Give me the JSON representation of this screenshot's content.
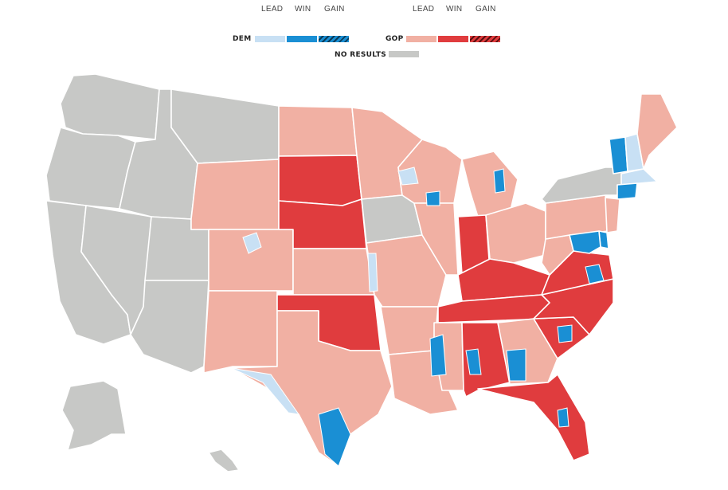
{
  "legend": {
    "dem": {
      "party_label": "DEM",
      "lead_label": "LEAD",
      "win_label": "WIN",
      "gain_label": "GAIN",
      "lead_color": "#c8e0f4",
      "win_color": "#1a8fd4",
      "gain_color": "#0d6fa8"
    },
    "gop": {
      "party_label": "GOP",
      "lead_label": "LEAD",
      "win_label": "WIN",
      "gain_label": "GAIN",
      "lead_color": "#f1b0a3",
      "win_color": "#e03c3e",
      "gain_color": "#b32326"
    },
    "no_results_label": "NO RESULTS",
    "no_results_color": "#c7c8c6"
  },
  "map": {
    "states": [
      {
        "code": "WA",
        "status": "no_results"
      },
      {
        "code": "OR",
        "status": "no_results"
      },
      {
        "code": "CA",
        "status": "no_results"
      },
      {
        "code": "NV",
        "status": "no_results"
      },
      {
        "code": "ID",
        "status": "no_results"
      },
      {
        "code": "MT",
        "status": "no_results"
      },
      {
        "code": "UT",
        "status": "no_results"
      },
      {
        "code": "AZ",
        "status": "no_results"
      },
      {
        "code": "WY",
        "status": "gop_lead"
      },
      {
        "code": "CO",
        "status": "gop_lead"
      },
      {
        "code": "NM",
        "status": "gop_lead"
      },
      {
        "code": "ND",
        "status": "gop_lead"
      },
      {
        "code": "SD",
        "status": "gop_win"
      },
      {
        "code": "NE",
        "status": "gop_win"
      },
      {
        "code": "KS",
        "status": "gop_lead"
      },
      {
        "code": "OK",
        "status": "gop_win"
      },
      {
        "code": "TX",
        "status": "gop_lead"
      },
      {
        "code": "MN",
        "status": "gop_lead"
      },
      {
        "code": "IA",
        "status": "no_results"
      },
      {
        "code": "MO",
        "status": "gop_lead"
      },
      {
        "code": "AR",
        "status": "gop_lead"
      },
      {
        "code": "LA",
        "status": "gop_lead"
      },
      {
        "code": "WI",
        "status": "gop_lead"
      },
      {
        "code": "IL",
        "status": "gop_lead"
      },
      {
        "code": "MI",
        "status": "gop_lead"
      },
      {
        "code": "IN",
        "status": "gop_win"
      },
      {
        "code": "OH",
        "status": "gop_lead"
      },
      {
        "code": "KY",
        "status": "gop_win"
      },
      {
        "code": "TN",
        "status": "gop_win"
      },
      {
        "code": "MS",
        "status": "gop_lead"
      },
      {
        "code": "AL",
        "status": "gop_win"
      },
      {
        "code": "GA",
        "status": "gop_lead"
      },
      {
        "code": "FL",
        "status": "gop_win"
      },
      {
        "code": "SC",
        "status": "gop_win"
      },
      {
        "code": "NC",
        "status": "gop_win"
      },
      {
        "code": "VA",
        "status": "gop_win"
      },
      {
        "code": "WV",
        "status": "gop_lead"
      },
      {
        "code": "PA",
        "status": "gop_lead"
      },
      {
        "code": "NY",
        "status": "no_results"
      },
      {
        "code": "VT",
        "status": "dem_win"
      },
      {
        "code": "NH",
        "status": "dem_lead"
      },
      {
        "code": "ME",
        "status": "gop_lead"
      },
      {
        "code": "MA",
        "status": "dem_lead"
      },
      {
        "code": "CT",
        "status": "dem_win"
      },
      {
        "code": "NJ",
        "status": "gop_lead"
      },
      {
        "code": "DE",
        "status": "dem_win"
      },
      {
        "code": "MD",
        "status": "dem_win"
      },
      {
        "code": "AK",
        "status": "no_results"
      },
      {
        "code": "HI",
        "status": "no_results"
      }
    ]
  }
}
